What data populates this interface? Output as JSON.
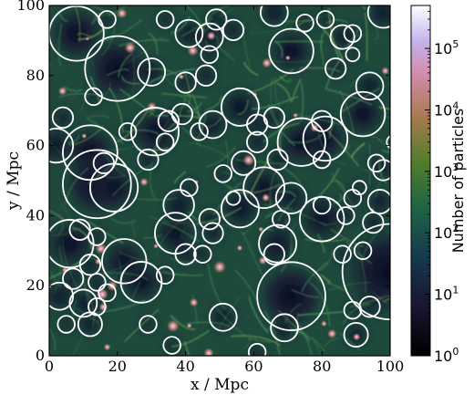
{
  "chart_data": {
    "type": "heatmap",
    "title": "",
    "xlabel": "x / Mpc",
    "ylabel": "y / Mpc",
    "xlim": [
      0,
      100
    ],
    "ylim": [
      0,
      100
    ],
    "x_ticks": [
      "0",
      "20",
      "40",
      "60",
      "80",
      "100"
    ],
    "y_ticks": [
      "0",
      "20",
      "40",
      "60",
      "80",
      "100"
    ],
    "grid": false,
    "colormap": "cubehelix",
    "colorbar": {
      "label": "Number of particles",
      "scale": "log",
      "range": [
        1,
        500000
      ],
      "ticks": [
        {
          "base": "10",
          "exp": "0"
        },
        {
          "base": "10",
          "exp": "1"
        },
        {
          "base": "10",
          "exp": "2"
        },
        {
          "base": "10",
          "exp": "3"
        },
        {
          "base": "10",
          "exp": "4"
        },
        {
          "base": "10",
          "exp": "5"
        }
      ]
    },
    "circle_color": "#ffffff",
    "voids": [
      [
        8,
        92,
        8
      ],
      [
        17,
        96,
        2.5
      ],
      [
        13,
        74,
        2.5
      ],
      [
        20,
        82,
        9.5
      ],
      [
        34,
        96,
        2.5
      ],
      [
        30,
        81,
        4
      ],
      [
        41,
        92,
        4
      ],
      [
        49,
        96,
        3
      ],
      [
        47,
        91,
        4
      ],
      [
        54,
        93,
        3
      ],
      [
        47,
        86,
        2.5
      ],
      [
        46,
        80,
        3
      ],
      [
        40,
        78,
        3
      ],
      [
        66,
        98,
        4
      ],
      [
        75,
        95,
        2.5
      ],
      [
        71,
        87,
        6.5
      ],
      [
        81,
        96,
        2.5
      ],
      [
        86,
        91,
        3.5
      ],
      [
        89,
        92,
        2.5
      ],
      [
        84,
        82,
        3
      ],
      [
        89,
        86,
        2
      ],
      [
        94,
        77,
        4
      ],
      [
        98,
        98,
        4.5
      ],
      [
        4,
        68,
        3
      ],
      [
        2,
        60,
        5
      ],
      [
        12,
        58,
        8
      ],
      [
        16,
        55,
        3
      ],
      [
        23,
        64,
        2.5
      ],
      [
        31,
        64,
        7
      ],
      [
        35,
        67,
        3
      ],
      [
        39,
        69,
        3
      ],
      [
        34,
        61,
        2.5
      ],
      [
        29,
        56,
        3
      ],
      [
        44,
        64,
        2.5
      ],
      [
        48,
        66,
        4
      ],
      [
        56,
        71,
        5.5
      ],
      [
        61,
        66,
        3
      ],
      [
        66,
        68,
        3
      ],
      [
        61,
        61,
        3
      ],
      [
        67,
        56,
        3
      ],
      [
        74,
        61,
        7
      ],
      [
        81,
        62,
        6.5
      ],
      [
        80,
        67,
        3
      ],
      [
        92,
        69,
        6.5
      ],
      [
        101,
        61,
        2
      ],
      [
        80,
        56,
        2.5
      ],
      [
        96,
        55,
        2.5
      ],
      [
        98,
        53,
        3
      ],
      [
        14,
        49,
        10
      ],
      [
        19,
        48,
        7
      ],
      [
        41,
        48,
        2.5
      ],
      [
        38,
        43,
        4.5
      ],
      [
        37,
        35,
        6
      ],
      [
        40,
        29,
        3
      ],
      [
        45,
        29,
        2.5
      ],
      [
        47,
        39,
        3
      ],
      [
        51,
        52,
        2.5
      ],
      [
        54,
        45,
        2
      ],
      [
        56,
        42,
        5.5
      ],
      [
        63,
        48,
        6
      ],
      [
        71,
        45,
        4.5
      ],
      [
        67,
        32,
        5.5
      ],
      [
        66,
        29,
        3
      ],
      [
        68,
        39,
        2.5
      ],
      [
        80,
        39,
        6.5
      ],
      [
        89,
        45,
        2.5
      ],
      [
        91,
        48,
        2
      ],
      [
        97,
        44,
        3.5
      ],
      [
        95,
        38,
        3
      ],
      [
        80,
        43,
        2.5
      ],
      [
        87,
        40,
        2.5
      ],
      [
        86,
        29,
        2.5
      ],
      [
        6,
        32,
        7
      ],
      [
        9,
        36,
        3
      ],
      [
        14,
        34,
        2.5
      ],
      [
        12,
        26,
        3
      ],
      [
        22,
        27,
        6.5
      ],
      [
        27,
        21,
        6
      ],
      [
        34,
        23,
        2.5
      ],
      [
        7,
        22,
        3
      ],
      [
        14,
        21,
        2.5
      ],
      [
        3,
        17,
        4
      ],
      [
        17,
        18,
        2.5
      ],
      [
        14,
        14,
        2.5
      ],
      [
        10,
        15,
        4
      ],
      [
        5,
        9,
        2.5
      ],
      [
        12,
        9,
        3.5
      ],
      [
        29,
        9,
        2.5
      ],
      [
        36,
        3,
        2.5
      ],
      [
        51,
        11,
        4
      ],
      [
        61,
        1,
        2.5
      ],
      [
        69,
        8,
        4
      ],
      [
        71,
        17,
        10
      ],
      [
        89,
        13,
        2.5
      ],
      [
        94,
        14,
        3
      ],
      [
        90,
        6,
        3.5
      ],
      [
        100,
        24,
        14
      ],
      [
        92,
        30,
        2.5
      ],
      [
        48,
        35,
        3
      ],
      [
        57,
        55,
        3.5
      ]
    ]
  }
}
